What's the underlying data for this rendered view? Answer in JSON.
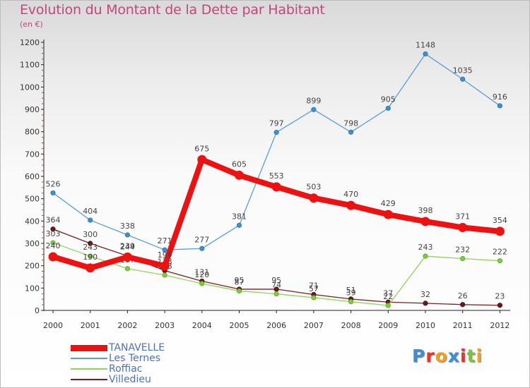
{
  "chart_data": {
    "type": "line",
    "title": "Evolution du Montant de la Dette par Habitant",
    "subtitle": "(en €)",
    "x": [
      "2000",
      "2001",
      "2002",
      "2003",
      "2004",
      "2005",
      "2006",
      "2007",
      "2008",
      "2009",
      "2010",
      "2011",
      "2012"
    ],
    "ylim": [
      0,
      1200
    ],
    "yticks": [
      0,
      100,
      200,
      300,
      400,
      500,
      600,
      700,
      800,
      900,
      1000,
      1100,
      1200
    ],
    "grid": false,
    "legend_position": "bottom-left",
    "series": [
      {
        "name": "Villedieu",
        "color": "#7a1f1f",
        "values": [
          364,
          300,
          244,
          178,
          131,
          95,
          95,
          71,
          51,
          37,
          32,
          26,
          23
        ]
      },
      {
        "name": "Roffiac",
        "color": "#8fd45a",
        "values": [
          303,
          243,
          187,
          158,
          120,
          87,
          74,
          57,
          39,
          22,
          243,
          232,
          222
        ]
      },
      {
        "name": "Les Ternes",
        "color": "#5a9fd4",
        "values": [
          526,
          404,
          338,
          271,
          277,
          381,
          797,
          899,
          798,
          905,
          1148,
          1035,
          916
        ]
      },
      {
        "name": "TANAVELLE",
        "color": "#ee1111",
        "values": [
          240,
          190,
          239,
          199,
          675,
          605,
          553,
          503,
          470,
          429,
          398,
          371,
          354
        ]
      }
    ]
  },
  "legend": [
    {
      "label": "TANAVELLE",
      "color": "#ee1111"
    },
    {
      "label": "Les Ternes",
      "color": "#5a9fd4"
    },
    {
      "label": "Roffiac",
      "color": "#8fd45a"
    },
    {
      "label": "Villedieu",
      "color": "#7a1f1f"
    }
  ],
  "logo": {
    "letters": [
      "P",
      "r",
      "o",
      "x",
      "i",
      "t",
      "i"
    ],
    "colors": [
      "#3b8fd6",
      "#e8332a",
      "#f0a01e",
      "#3b8fd6",
      "#e8332a",
      "#7dc242",
      "#f0a01e"
    ]
  }
}
